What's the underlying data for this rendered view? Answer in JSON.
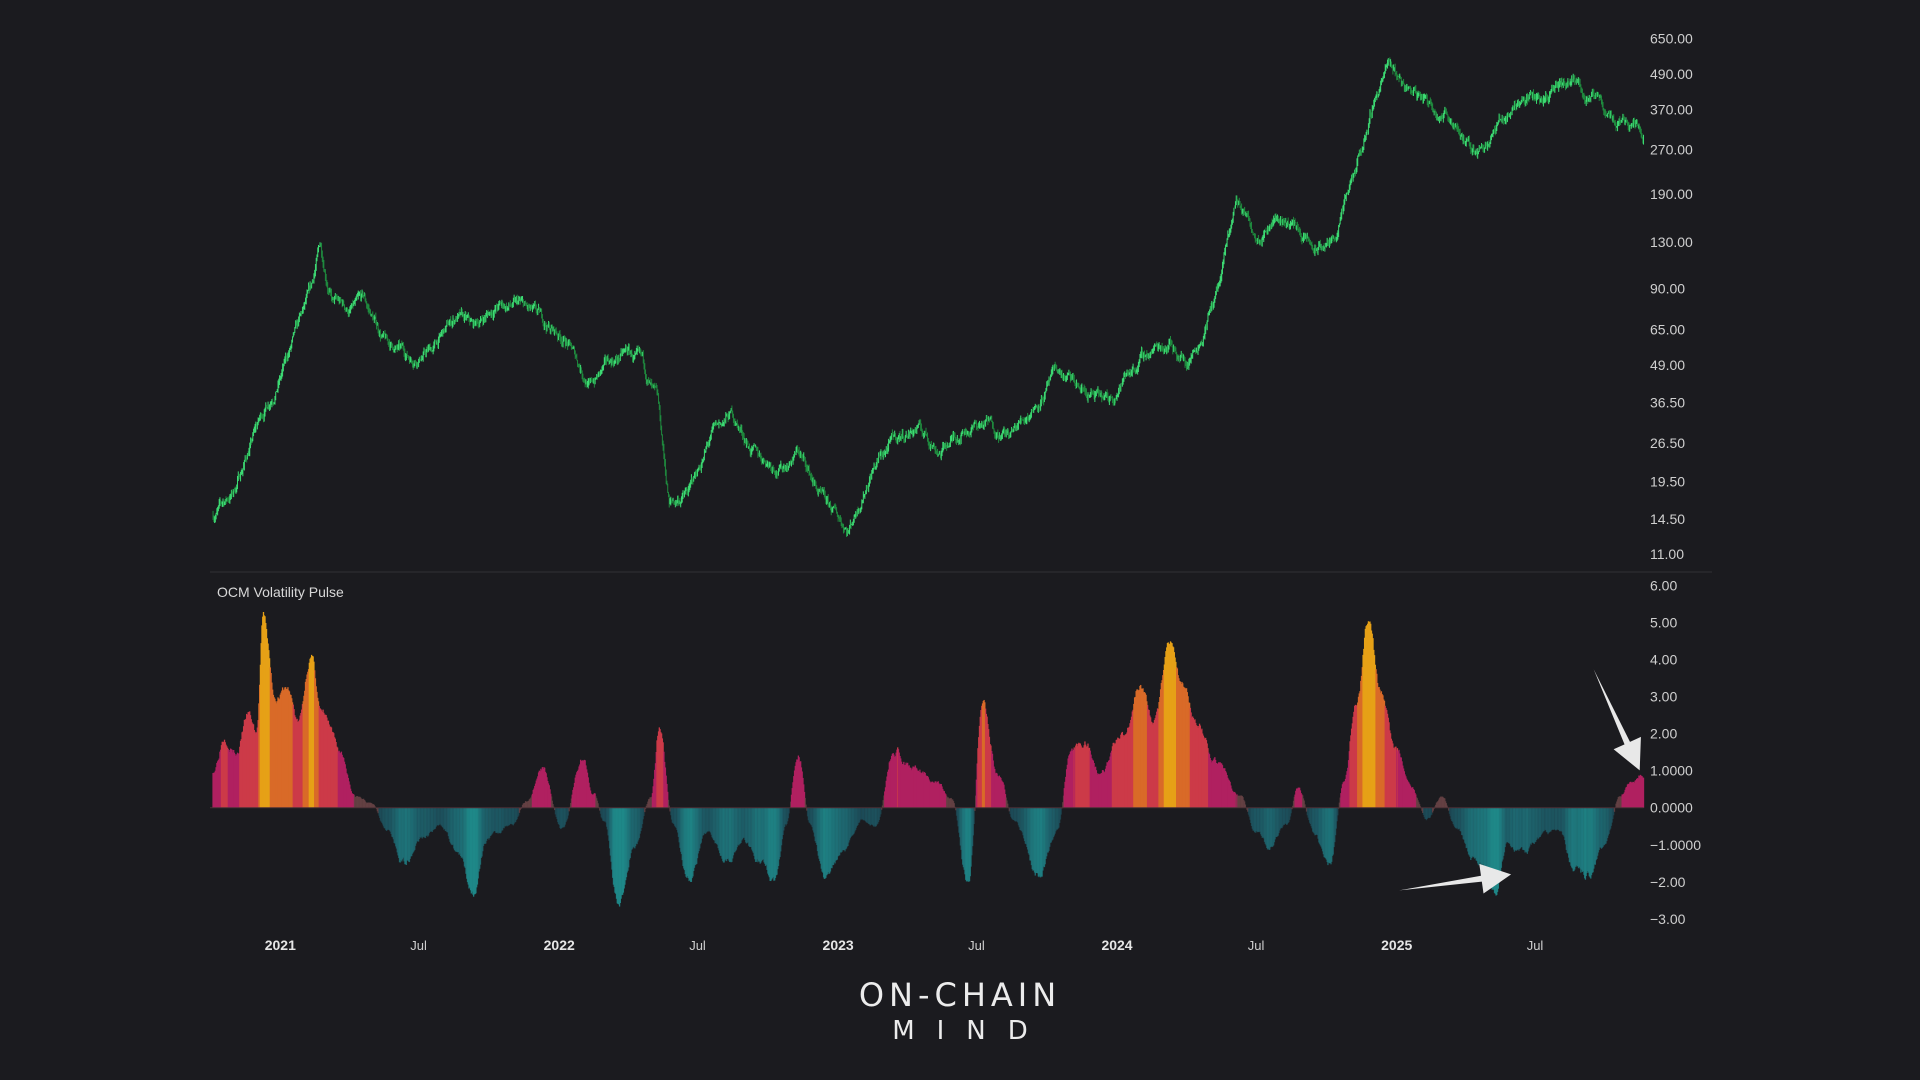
{
  "chart_data": [
    {
      "type": "candlestick",
      "scale": "log",
      "y_ticks": [
        11.0,
        14.5,
        19.5,
        26.5,
        36.5,
        49.0,
        65.0,
        90.0,
        130.0,
        190.0,
        270.0,
        370.0,
        490.0,
        650.0
      ],
      "y_tick_labels": [
        "11.00",
        "14.50",
        "19.50",
        "26.50",
        "36.50",
        "49.00",
        "65.00",
        "90.00",
        "130.00",
        "190.00",
        "270.00",
        "370.00",
        "490.00",
        "650.00"
      ],
      "ylim": [
        10.5,
        800
      ],
      "color": "#2fcf6a",
      "price_path": [
        [
          "2020-10-05",
          15
        ],
        [
          "2020-11-01",
          18
        ],
        [
          "2020-12-01",
          30
        ],
        [
          "2021-01-01",
          45
        ],
        [
          "2021-02-10",
          85
        ],
        [
          "2021-02-22",
          125
        ],
        [
          "2021-03-10",
          82
        ],
        [
          "2021-04-01",
          75
        ],
        [
          "2021-04-20",
          80
        ],
        [
          "2021-05-20",
          58
        ],
        [
          "2021-06-20",
          52
        ],
        [
          "2021-07-20",
          56
        ],
        [
          "2021-08-20",
          72
        ],
        [
          "2021-09-10",
          65
        ],
        [
          "2021-10-10",
          78
        ],
        [
          "2021-11-10",
          78
        ],
        [
          "2021-12-10",
          68
        ],
        [
          "2022-01-10",
          60
        ],
        [
          "2022-02-10",
          42
        ],
        [
          "2022-03-10",
          50
        ],
        [
          "2022-04-01",
          54
        ],
        [
          "2022-04-20",
          48
        ],
        [
          "2022-05-10",
          35
        ],
        [
          "2022-05-25",
          16
        ],
        [
          "2022-06-20",
          18
        ],
        [
          "2022-07-20",
          28
        ],
        [
          "2022-08-15",
          33
        ],
        [
          "2022-09-15",
          24
        ],
        [
          "2022-10-20",
          22
        ],
        [
          "2022-11-10",
          25
        ],
        [
          "2022-12-15",
          16
        ],
        [
          "2023-01-15",
          13.5
        ],
        [
          "2023-02-15",
          22
        ],
        [
          "2023-03-15",
          27
        ],
        [
          "2023-04-15",
          30
        ],
        [
          "2023-05-15",
          25
        ],
        [
          "2023-06-15",
          30
        ],
        [
          "2023-07-15",
          31
        ],
        [
          "2023-08-15",
          28
        ],
        [
          "2023-09-15",
          36
        ],
        [
          "2023-10-15",
          46
        ],
        [
          "2023-11-15",
          40
        ],
        [
          "2023-12-20",
          36
        ],
        [
          "2024-01-20",
          48
        ],
        [
          "2024-02-15",
          55
        ],
        [
          "2024-03-10",
          60
        ],
        [
          "2024-04-01",
          50
        ],
        [
          "2024-04-20",
          62
        ],
        [
          "2024-05-15",
          95
        ],
        [
          "2024-06-05",
          180
        ],
        [
          "2024-07-01",
          140
        ],
        [
          "2024-07-25",
          160
        ],
        [
          "2024-08-20",
          150
        ],
        [
          "2024-09-15",
          120
        ],
        [
          "2024-10-10",
          130
        ],
        [
          "2024-11-10",
          230
        ],
        [
          "2024-12-05",
          420
        ],
        [
          "2024-12-20",
          520
        ],
        [
          "2025-01-15",
          440
        ],
        [
          "2025-02-15",
          390
        ],
        [
          "2025-03-20",
          340
        ],
        [
          "2025-04-10",
          260
        ],
        [
          "2025-05-15",
          330
        ],
        [
          "2025-06-10",
          400
        ],
        [
          "2025-07-15",
          420
        ],
        [
          "2025-08-20",
          450
        ],
        [
          "2025-09-20",
          390
        ],
        [
          "2025-10-15",
          340
        ],
        [
          "2025-11-05",
          350
        ],
        [
          "2025-11-20",
          320
        ]
      ]
    },
    {
      "type": "area",
      "title": "OCM Volatility Pulse",
      "y_ticks": [
        -3,
        -2,
        -1,
        0,
        1,
        2,
        3,
        4,
        5,
        6
      ],
      "y_tick_labels": [
        "−3.00",
        "−2.00",
        "−1.0000",
        "0.0000",
        "1.0000",
        "2.00",
        "3.00",
        "4.00",
        "5.00",
        "6.00"
      ],
      "ylim": [
        -3.3,
        6.2
      ],
      "colors": {
        "negative": "#1e7d7b",
        "neutral": "#5a3a40",
        "positive_low": "#b0205f",
        "positive_mid": "#d9502a",
        "positive_high": "#e9a515"
      },
      "values": [
        [
          "2020-10-05",
          1.0
        ],
        [
          "2020-10-20",
          2.0
        ],
        [
          "2020-11-05",
          1.5
        ],
        [
          "2020-11-20",
          2.5
        ],
        [
          "2020-12-01",
          2.0
        ],
        [
          "2020-12-10",
          5.1
        ],
        [
          "2020-12-25",
          3.0
        ],
        [
          "2021-01-10",
          3.2
        ],
        [
          "2021-01-25",
          2.3
        ],
        [
          "2021-02-10",
          4.1
        ],
        [
          "2021-02-25",
          2.5
        ],
        [
          "2021-03-20",
          1.5
        ],
        [
          "2021-04-10",
          0.3
        ],
        [
          "2021-05-01",
          0.1
        ],
        [
          "2021-05-20",
          -0.5
        ],
        [
          "2021-06-10",
          -1.5
        ],
        [
          "2021-07-05",
          -0.8
        ],
        [
          "2021-08-01",
          -0.5
        ],
        [
          "2021-08-20",
          -1.2
        ],
        [
          "2021-09-10",
          -2.2
        ],
        [
          "2021-10-01",
          -0.8
        ],
        [
          "2021-11-01",
          -0.4
        ],
        [
          "2021-11-20",
          0.2
        ],
        [
          "2021-12-10",
          1.1
        ],
        [
          "2022-01-05",
          -0.6
        ],
        [
          "2022-02-01",
          1.4
        ],
        [
          "2022-02-15",
          0.4
        ],
        [
          "2022-03-01",
          -0.4
        ],
        [
          "2022-03-20",
          -2.6
        ],
        [
          "2022-04-10",
          -1.0
        ],
        [
          "2022-05-01",
          0.3
        ],
        [
          "2022-05-12",
          2.1
        ],
        [
          "2022-05-30",
          -0.4
        ],
        [
          "2022-06-20",
          -1.9
        ],
        [
          "2022-07-15",
          -0.7
        ],
        [
          "2022-08-10",
          -1.3
        ],
        [
          "2022-09-01",
          -0.9
        ],
        [
          "2022-09-20",
          -1.4
        ],
        [
          "2022-10-10",
          -2.0
        ],
        [
          "2022-10-25",
          -0.5
        ],
        [
          "2022-11-10",
          1.5
        ],
        [
          "2022-11-25",
          -0.4
        ],
        [
          "2022-12-15",
          -1.9
        ],
        [
          "2023-01-10",
          -1.0
        ],
        [
          "2023-02-01",
          -0.3
        ],
        [
          "2023-02-20",
          -0.5
        ],
        [
          "2023-03-15",
          1.6
        ],
        [
          "2023-04-10",
          1.1
        ],
        [
          "2023-05-10",
          0.7
        ],
        [
          "2023-05-30",
          0.2
        ],
        [
          "2023-06-20",
          -2.2
        ],
        [
          "2023-07-10",
          2.7
        ],
        [
          "2023-07-30",
          0.9
        ],
        [
          "2023-08-20",
          -0.4
        ],
        [
          "2023-09-20",
          -1.8
        ],
        [
          "2023-10-15",
          -0.6
        ],
        [
          "2023-11-01",
          1.5
        ],
        [
          "2023-11-20",
          1.8
        ],
        [
          "2023-12-10",
          1.0
        ],
        [
          "2024-01-10",
          2.0
        ],
        [
          "2024-02-01",
          3.3
        ],
        [
          "2024-02-20",
          2.3
        ],
        [
          "2024-03-10",
          4.5
        ],
        [
          "2024-03-25",
          3.4
        ],
        [
          "2024-04-15",
          2.3
        ],
        [
          "2024-05-10",
          1.2
        ],
        [
          "2024-06-10",
          0.3
        ],
        [
          "2024-07-01",
          -0.6
        ],
        [
          "2024-07-20",
          -1.1
        ],
        [
          "2024-08-10",
          -0.5
        ],
        [
          "2024-08-25",
          0.6
        ],
        [
          "2024-09-15",
          -0.7
        ],
        [
          "2024-10-05",
          -1.6
        ],
        [
          "2024-10-25",
          0.8
        ],
        [
          "2024-11-10",
          2.8
        ],
        [
          "2024-11-25",
          5.1
        ],
        [
          "2024-12-10",
          3.1
        ],
        [
          "2025-01-01",
          1.5
        ],
        [
          "2025-01-20",
          0.5
        ],
        [
          "2025-02-10",
          -0.3
        ],
        [
          "2025-03-01",
          0.3
        ],
        [
          "2025-03-20",
          -0.5
        ],
        [
          "2025-04-10",
          -1.3
        ],
        [
          "2025-04-25",
          -1.5
        ],
        [
          "2025-05-10",
          -2.3
        ],
        [
          "2025-05-25",
          -1.0
        ],
        [
          "2025-06-15",
          -1.2
        ],
        [
          "2025-07-10",
          -0.8
        ],
        [
          "2025-08-01",
          -0.6
        ],
        [
          "2025-08-20",
          -1.6
        ],
        [
          "2025-09-10",
          -1.8
        ],
        [
          "2025-10-01",
          -1.0
        ],
        [
          "2025-10-20",
          0.3
        ],
        [
          "2025-11-05",
          0.7
        ],
        [
          "2025-11-20",
          0.9
        ]
      ]
    }
  ],
  "time_axis": {
    "range": [
      "2020-10-01",
      "2026-02-15"
    ],
    "labels": [
      {
        "text": "2021",
        "date": "2021-01-01",
        "year": true
      },
      {
        "text": "Jul",
        "date": "2021-07-01",
        "year": false
      },
      {
        "text": "2022",
        "date": "2022-01-01",
        "year": true
      },
      {
        "text": "Jul",
        "date": "2022-07-01",
        "year": false
      },
      {
        "text": "2023",
        "date": "2023-01-01",
        "year": true
      },
      {
        "text": "Jul",
        "date": "2023-07-01",
        "year": false
      },
      {
        "text": "2024",
        "date": "2024-01-01",
        "year": true
      },
      {
        "text": "Jul",
        "date": "2024-07-01",
        "year": false
      },
      {
        "text": "2025",
        "date": "2025-01-01",
        "year": true
      },
      {
        "text": "Jul",
        "date": "2025-07-01",
        "year": false
      }
    ]
  },
  "annotations": [
    {
      "name": "arrow-down-right",
      "target_date": "2025-11-15",
      "target_value": 0.9
    },
    {
      "name": "arrow-right",
      "target_date": "2025-05-15",
      "target_value": -1.8
    }
  ],
  "logo": {
    "line1": "ON-CHAIN",
    "line2": "MIND"
  }
}
